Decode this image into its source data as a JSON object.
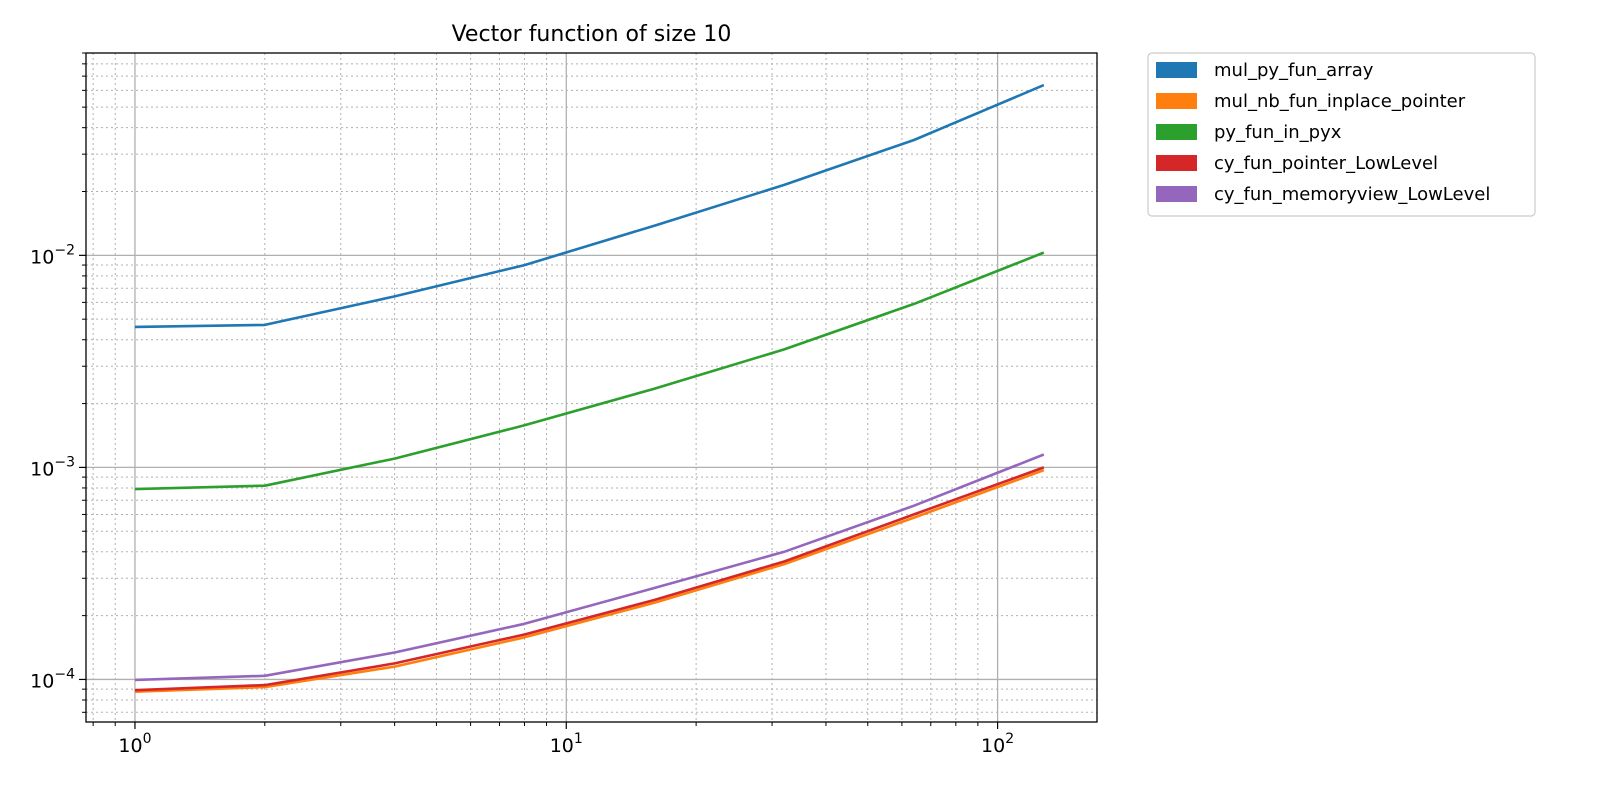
{
  "chart_data": {
    "type": "line",
    "title": "Vector function of size 10",
    "xlabel": "",
    "ylabel": "",
    "x_scale": "log",
    "y_scale": "log",
    "xlim": [
      0.77,
      170
    ],
    "ylim": [
      6.3e-05,
      0.09
    ],
    "x_ticks": [
      {
        "value": 1,
        "base": "10",
        "exp": "0"
      },
      {
        "value": 10,
        "base": "10",
        "exp": "1"
      },
      {
        "value": 100,
        "base": "10",
        "exp": "2"
      }
    ],
    "y_ticks": [
      {
        "value": 0.0001,
        "base": "10",
        "exp": "−4"
      },
      {
        "value": 0.001,
        "base": "10",
        "exp": "−3"
      },
      {
        "value": 0.01,
        "base": "10",
        "exp": "−2"
      }
    ],
    "grid": "major and minor",
    "legend_position": "outside upper right",
    "x": [
      1,
      2,
      4,
      8,
      16,
      32,
      64,
      128
    ],
    "series": [
      {
        "name": "mul_py_fun_array",
        "color": "#1f77b4",
        "values": [
          0.0046,
          0.0047,
          0.0064,
          0.009,
          0.0138,
          0.0215,
          0.035,
          0.0635
        ]
      },
      {
        "name": "mul_nb_fun_inplace_pointer",
        "color": "#ff7f0e",
        "values": [
          8.75e-05,
          9.2e-05,
          0.000115,
          0.000158,
          0.00023,
          0.00035,
          0.00058,
          0.00097
        ]
      },
      {
        "name": "py_fun_in_pyx",
        "color": "#2ca02c",
        "values": [
          0.00079,
          0.00082,
          0.0011,
          0.00158,
          0.00235,
          0.0036,
          0.0059,
          0.0103
        ]
      },
      {
        "name": "cy_fun_pointer_LowLevel",
        "color": "#d62728",
        "values": [
          8.9e-05,
          9.4e-05,
          0.000119,
          0.000163,
          0.000237,
          0.00036,
          0.0006,
          0.001
        ]
      },
      {
        "name": "cy_fun_memoryview_LowLevel",
        "color": "#9467bd",
        "values": [
          9.95e-05,
          0.000104,
          0.000134,
          0.000183,
          0.00027,
          0.0004,
          0.00066,
          0.00115
        ]
      }
    ]
  }
}
